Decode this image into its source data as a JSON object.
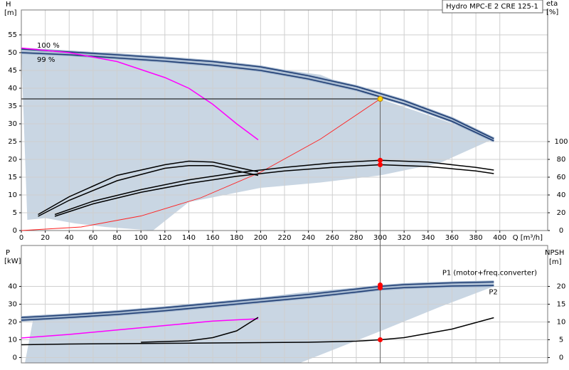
{
  "chart_data": [
    {
      "type": "line",
      "title": "Hydro MPC-E 2 CRE 125-1",
      "ylabel": "H",
      "yunit": "[m]",
      "y2label": "eta",
      "y2unit": "[%]",
      "xlabel": "Q [m³/h]",
      "xlim": [
        0,
        440
      ],
      "xticks": [
        0,
        20,
        40,
        60,
        80,
        100,
        120,
        140,
        160,
        180,
        200,
        220,
        240,
        260,
        280,
        300,
        320,
        340,
        360,
        380,
        400
      ],
      "ylim": [
        0,
        62
      ],
      "yticks": [
        0,
        5,
        10,
        15,
        20,
        25,
        30,
        35,
        40,
        45,
        50,
        55
      ],
      "y2lim": [
        0,
        248
      ],
      "y2ticks": [
        0,
        20,
        40,
        60,
        80,
        100
      ],
      "grid": true,
      "area": {
        "color": "#c9d6e3",
        "x": [
          0,
          5,
          20,
          45,
          70,
          110,
          140,
          200,
          250,
          300,
          350,
          395
        ],
        "upper": [
          51,
          51,
          50.8,
          50.3,
          49.8,
          49.2,
          48.4,
          46,
          43.8,
          37,
          31.3,
          25.8
        ],
        "lower": [
          50,
          3,
          3.5,
          2,
          1,
          0,
          8,
          12,
          13.5,
          15.5,
          19,
          25.8
        ]
      },
      "series": [
        {
          "name": "100 %",
          "color": "#1f3d73",
          "x": [
            0,
            40,
            80,
            120,
            160,
            200,
            240,
            280,
            320,
            360,
            395
          ],
          "values": [
            51,
            50.2,
            49.4,
            48.5,
            47.5,
            46,
            43.5,
            40.5,
            36.5,
            31.5,
            25.8
          ]
        },
        {
          "name": "99 %",
          "color": "#1f3d73",
          "x": [
            0,
            40,
            80,
            120,
            160,
            200,
            240,
            280,
            320,
            360,
            395
          ],
          "values": [
            50,
            49.4,
            48.5,
            47.6,
            46.5,
            45,
            42.6,
            39.6,
            35.6,
            30.7,
            25.2
          ]
        },
        {
          "color": "#ff00ff",
          "x": [
            0,
            40,
            80,
            120,
            140,
            160,
            180,
            198
          ],
          "values": [
            51.3,
            50,
            47.5,
            43,
            40,
            35.5,
            30,
            25.5
          ]
        },
        {
          "color": "#ff2020",
          "x": [
            0,
            50,
            100,
            150,
            200,
            250,
            300
          ],
          "values": [
            0,
            1,
            4.1,
            9.2,
            16.4,
            25.7,
            37
          ]
        },
        {
          "color": "#000000",
          "axis": "y2",
          "x": [
            28,
            60,
            100,
            140,
            180,
            220,
            260,
            300,
            340,
            380,
            395
          ],
          "values": [
            18,
            33,
            46,
            57,
            65,
            71,
            76,
            79,
            77,
            71,
            68
          ]
        },
        {
          "color": "#000000",
          "axis": "y2",
          "x": [
            28,
            60,
            100,
            140,
            180,
            220,
            260,
            300,
            340,
            380,
            395
          ],
          "values": [
            16,
            30,
            43,
            53,
            61,
            67,
            71,
            74,
            72,
            67,
            64
          ]
        },
        {
          "color": "#000000",
          "axis": "y2",
          "x": [
            14,
            40,
            80,
            120,
            140,
            160,
            198
          ],
          "values": [
            18,
            38,
            62,
            74,
            78,
            77,
            66
          ]
        },
        {
          "color": "#000000",
          "axis": "y2",
          "x": [
            14,
            40,
            80,
            120,
            140,
            160,
            198
          ],
          "values": [
            16,
            34,
            56,
            70,
            73,
            73,
            62
          ]
        }
      ],
      "points": [
        {
          "x": 300,
          "y": 37,
          "color": "#ffd700"
        },
        {
          "x": 300,
          "y": 79,
          "axis": "y2",
          "color": "#ff0000"
        },
        {
          "x": 300,
          "y": 74,
          "axis": "y2",
          "color": "#ff0000"
        }
      ]
    },
    {
      "type": "line",
      "ylabel": "P",
      "yunit": "[kW]",
      "y2label": "NPSH",
      "y2unit": "[m]",
      "xlim": [
        0,
        440
      ],
      "ylim": [
        -3,
        63
      ],
      "yticks": [
        0,
        10,
        20,
        30,
        40
      ],
      "y2lim": [
        -1.5,
        31.5
      ],
      "y2ticks": [
        0,
        5,
        10,
        15,
        20
      ],
      "grid": true,
      "area": {
        "color": "#c9d6e3",
        "x": [
          3,
          10,
          60,
          120,
          180,
          233,
          300,
          350,
          395
        ],
        "upper": [
          -3,
          22,
          24.8,
          28,
          32,
          36.5,
          40.5,
          42,
          42.5
        ],
        "lower": [
          -3,
          -3,
          -3,
          -3,
          -3,
          -3,
          14.8,
          28.5,
          40
        ]
      },
      "series": [
        {
          "name": "P1 (motor+freq.converter)",
          "color": "#1f3d73",
          "x": [
            0,
            40,
            80,
            120,
            160,
            200,
            240,
            280,
            300,
            320,
            360,
            395
          ],
          "values": [
            22.5,
            24,
            25.8,
            28,
            30.5,
            33,
            35.5,
            38.5,
            40,
            41,
            42,
            42.5
          ]
        },
        {
          "name": "P2",
          "color": "#1f3d73",
          "x": [
            0,
            40,
            80,
            120,
            160,
            200,
            240,
            280,
            300,
            320,
            360,
            395
          ],
          "values": [
            21,
            22.5,
            24.2,
            26.3,
            28.8,
            31.3,
            33.8,
            36.8,
            38.4,
            39.3,
            40.2,
            40.5
          ]
        },
        {
          "color": "#ff00ff",
          "x": [
            0,
            40,
            80,
            120,
            160,
            198
          ],
          "values": [
            11,
            13,
            15.5,
            18,
            20.5,
            21.8
          ]
        },
        {
          "color": "#000000",
          "axis": "y2",
          "x": [
            0,
            40,
            80,
            120,
            160,
            200,
            240,
            280,
            300,
            320,
            360,
            395
          ],
          "values": [
            3.6,
            3.8,
            3.9,
            4,
            4.1,
            4.2,
            4.3,
            4.6,
            5,
            5.6,
            8,
            11.2
          ]
        },
        {
          "color": "#000000",
          "axis": "y2",
          "x": [
            100,
            140,
            160,
            180,
            198
          ],
          "values": [
            4.3,
            4.7,
            5.6,
            7.5,
            11.3
          ]
        }
      ],
      "points": [
        {
          "x": 300,
          "y": 40.8,
          "color": "#ff0000"
        },
        {
          "x": 300,
          "y": 39.2,
          "color": "#ff0000"
        },
        {
          "x": 300,
          "y": 5,
          "axis": "y2",
          "color": "#ff0000"
        }
      ]
    }
  ]
}
